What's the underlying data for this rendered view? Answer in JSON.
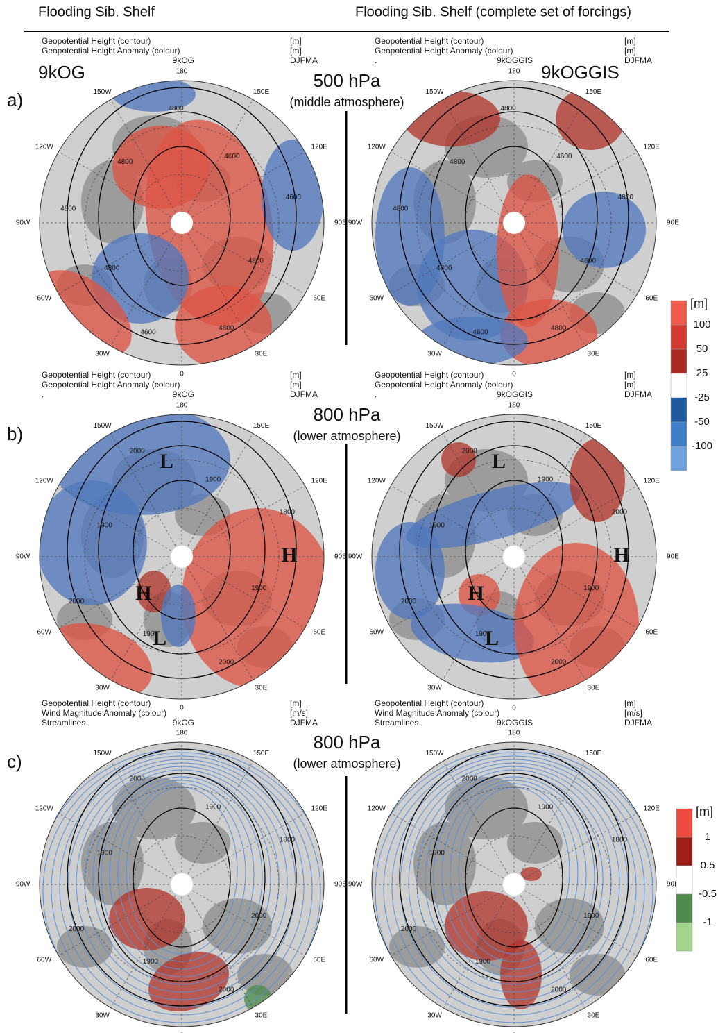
{
  "header": {
    "left": "Flooding Sib. Shelf",
    "right": "Flooding Sib. Shelf (complete set of forcings)"
  },
  "rows": [
    {
      "label": "a)",
      "level": "500 hPa",
      "layer": "(middle atmosphere)",
      "panels": [
        {
          "name": "9kOG",
          "lines": [
            {
              "text": "Geopotential Height (contour)",
              "unit": "[m]"
            },
            {
              "text": "Geopotential Height Anomaly (colour)",
              "unit": "[m]"
            },
            {
              "run": "9kOG",
              "season": "DJFMA"
            }
          ],
          "contours": [
            "4800",
            "4800",
            "4600",
            "4600",
            "4800",
            "4800",
            "4800",
            "4800",
            "4600"
          ]
        },
        {
          "name": "9kOGGIS",
          "lines": [
            {
              "text": "Geopotential Height (contour)",
              "unit": "[m]"
            },
            {
              "text": "Geopotential Height Anomaly (colour)",
              "unit": "[m]"
            },
            {
              "text": ".",
              "run": "9kOGGIS",
              "season": "DJFMA"
            }
          ],
          "contours": [
            "4800",
            "4600",
            "4800",
            "4600",
            "4800",
            "4800",
            "4800",
            "4800",
            "4600"
          ]
        }
      ]
    },
    {
      "label": "b)",
      "level": "800 hPa",
      "layer": "(lower atmosphere)",
      "panels": [
        {
          "lines": [
            {
              "text": "Geopotential Height (contour)",
              "unit": "[m]"
            },
            {
              "text": "Geopotential Height Anomaly (colour)",
              "unit": "[m]"
            },
            {
              "text": ".",
              "run": "9kOG",
              "season": "DJFMA"
            }
          ],
          "centers": [
            "L",
            "H",
            "H",
            "L"
          ],
          "contours": [
            "2000",
            "1900",
            "1800",
            "1900",
            "2000",
            "1900",
            "2000",
            "1900"
          ]
        },
        {
          "lines": [
            {
              "text": "Geopotential Height (contour)",
              "unit": "[m]"
            },
            {
              "text": "Geopotential Height Anomaly (colour)",
              "unit": "[m]"
            },
            {
              "text": ".",
              "run": "9kOGGIS",
              "season": "DJFMA"
            }
          ],
          "centers": [
            "L",
            "H",
            "H",
            "L"
          ],
          "contours": [
            "2000",
            "1900",
            "2000",
            "1900",
            "2000",
            "1900",
            "2000",
            "1900"
          ]
        }
      ]
    },
    {
      "label": "c)",
      "level": "800 hPa",
      "layer": "(lower atmosphere)",
      "panels": [
        {
          "lines": [
            {
              "text": "Geopotential Height (contour)",
              "unit": "[m]"
            },
            {
              "text": "Wind Magnitude Anomaly (colour)",
              "unit": "[m/s]"
            },
            {
              "text": "Streamlines",
              "run": "9kOG",
              "season": "DJFMA"
            }
          ],
          "contours": [
            "2000",
            "2000",
            "1800",
            "1900",
            "2000",
            "1900",
            "2000",
            "1900"
          ]
        },
        {
          "lines": [
            {
              "text": "Geopotential Height (contour)",
              "unit": "[m]"
            },
            {
              "text": "Wind Magnitude Anomaly (colour)",
              "unit": "[m/s]"
            },
            {
              "text": "Streamlines",
              "run": "9kOGGIS",
              "season": "DJFMA"
            }
          ],
          "contours": [
            "2000",
            "1900",
            "1800",
            "1900",
            "2000",
            "1900",
            "2000",
            "1900"
          ]
        }
      ]
    }
  ],
  "longitudes": [
    "0",
    "30E",
    "60E",
    "90E",
    "120E",
    "150E",
    "180",
    "150W",
    "120W",
    "90W",
    "60W",
    "30W"
  ],
  "colorbars": [
    {
      "unit": "[m]",
      "labels": [
        "100",
        "50",
        "25",
        "-25",
        "-50",
        "-100"
      ]
    },
    {
      "unit": "[m]",
      "labels": [
        "1",
        "0.5",
        "-0.5",
        "-1"
      ]
    }
  ]
}
